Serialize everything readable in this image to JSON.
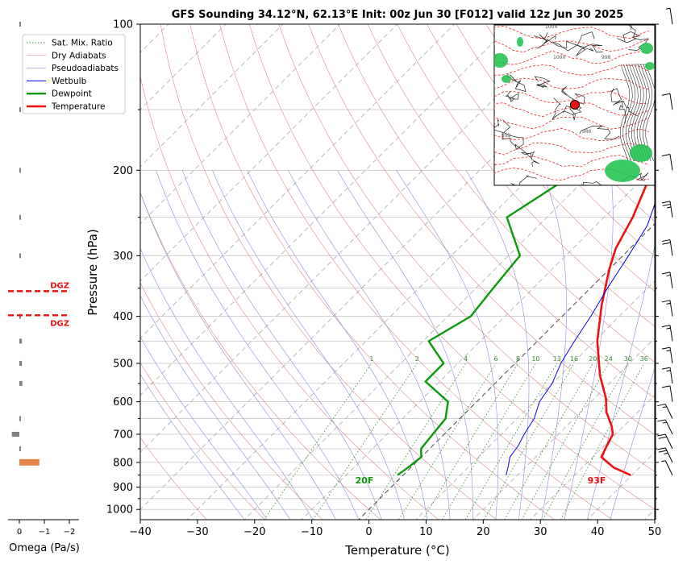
{
  "chart_data": {
    "type": "skew-t",
    "title": "GFS Sounding 34.12°N, 62.13°E Init: 00z Jun 30 [F012] valid 12z Jun 30 2025",
    "xlabel": "Temperature (°C)",
    "ylabel": "Pressure (hPa)",
    "x_ticks": [
      "−40",
      "−30",
      "−20",
      "−10",
      "0",
      "10",
      "20",
      "30",
      "40",
      "50"
    ],
    "x_tick_values": [
      -40,
      -30,
      -20,
      -10,
      0,
      10,
      20,
      30,
      40,
      50
    ],
    "xlim": [
      -40,
      50
    ],
    "ylim": [
      1050,
      100
    ],
    "y_ticks": [
      "100",
      "200",
      "300",
      "400",
      "500",
      "600",
      "700",
      "800",
      "900",
      "1000"
    ],
    "y_tick_values": [
      100,
      200,
      300,
      400,
      500,
      600,
      700,
      800,
      900,
      1000
    ],
    "y_scale": "log",
    "grid": true,
    "legend": {
      "position": "top-left (outside plot)",
      "entries": [
        {
          "label": "Sat. Mix. Ratio",
          "color": "#2e8b2e",
          "style": "dotted"
        },
        {
          "label": "Dry Adiabats",
          "color": "#d98c8c",
          "style": "solid-thin"
        },
        {
          "label": "Pseudoadiabats",
          "color": "#8c8cd9",
          "style": "solid-thin"
        },
        {
          "label": "Wetbulb",
          "color": "#0000ee",
          "style": "solid"
        },
        {
          "label": "Dewpoint",
          "color": "#0a9a0a",
          "style": "solid-thick"
        },
        {
          "label": "Temperature",
          "color": "#ee1111",
          "style": "solid-thick"
        }
      ]
    },
    "series": [
      {
        "name": "Temperature",
        "color": "#ee1111",
        "points": [
          [
            39.8,
            850
          ],
          [
            35.5,
            820
          ],
          [
            31.5,
            780
          ],
          [
            30.5,
            740
          ],
          [
            29.5,
            700
          ],
          [
            28,
            675
          ],
          [
            24.5,
            630
          ],
          [
            22,
            590
          ],
          [
            17,
            530
          ],
          [
            10.5,
            450
          ],
          [
            5,
            380
          ],
          [
            0,
            320
          ],
          [
            -2.5,
            290
          ],
          [
            -5,
            250
          ],
          [
            -12,
            180
          ],
          [
            -13,
            160
          ],
          [
            -17,
            130
          ],
          [
            -19.5,
            100
          ]
        ]
      },
      {
        "name": "Wetbulb",
        "color": "#0000ee",
        "points": [
          [
            18,
            850
          ],
          [
            17,
            820
          ],
          [
            15.5,
            780
          ],
          [
            15,
            740
          ],
          [
            14,
            700
          ],
          [
            13,
            650
          ],
          [
            11,
            600
          ],
          [
            10,
            550
          ],
          [
            8,
            500
          ],
          [
            6.5,
            450
          ],
          [
            5,
            400
          ],
          [
            3,
            350
          ],
          [
            1,
            300
          ],
          [
            -1,
            260
          ],
          [
            -5,
            220
          ],
          [
            -8,
            190
          ],
          [
            -10,
            170
          ],
          [
            -12.5,
            150
          ]
        ]
      },
      {
        "name": "Dewpoint",
        "color": "#0a9a0a",
        "points": [
          [
            -1,
            850
          ],
          [
            -0.5,
            820
          ],
          [
            0,
            780
          ],
          [
            -1.5,
            750
          ],
          [
            -2,
            700
          ],
          [
            -2.5,
            650
          ],
          [
            -5,
            600
          ],
          [
            -12.5,
            545
          ],
          [
            -12.5,
            500
          ],
          [
            -19,
            450
          ],
          [
            -16,
            400
          ],
          [
            -17,
            350
          ],
          [
            -18,
            300
          ],
          [
            -27,
            250
          ],
          [
            -22.5,
            200
          ],
          [
            -20,
            160
          ],
          [
            -19.5,
            130
          ],
          [
            -19,
            100
          ]
        ]
      }
    ],
    "mixing_ratio_labels": [
      "1",
      "2",
      "4",
      "6",
      "8",
      "10",
      "13",
      "16",
      "20",
      "24",
      "30",
      "36"
    ],
    "mixing_ratio_values": [
      1,
      2,
      4,
      6,
      8,
      10,
      13,
      16,
      20,
      24,
      30,
      36
    ],
    "surface_labels": {
      "dewpoint": "20F",
      "temperature": "93F"
    },
    "dgz_label": "DGZ",
    "dgz_levels_hpa": [
      355,
      398
    ],
    "omega": {
      "xlabel": "Omega (Pa/s)",
      "x_ticks": [
        "0",
        "−1",
        "−2"
      ],
      "x_tick_values": [
        0,
        -1,
        -2
      ],
      "levels": [
        100,
        150,
        200,
        250,
        300,
        400,
        450,
        500,
        550,
        650,
        700,
        750,
        800
      ],
      "values": [
        -0.02,
        -0.03,
        -0.05,
        -0.06,
        -0.03,
        -0.02,
        -0.1,
        -0.1,
        -0.12,
        -0.05,
        0.3,
        -0.05,
        -0.8
      ]
    },
    "wind_barbs": {
      "levels": [
        100,
        150,
        200,
        250,
        300,
        350,
        400,
        450,
        500,
        550,
        600,
        650,
        700,
        750,
        800,
        850
      ],
      "speed_kt": [
        5,
        10,
        10,
        25,
        20,
        15,
        15,
        15,
        15,
        15,
        10,
        15,
        15,
        20,
        25,
        5
      ]
    },
    "inset_map": {
      "description": "sea-level pressure contours with station marker",
      "contour_labels": [
        "1004",
        "1000",
        "998",
        "992",
        "986"
      ]
    }
  }
}
